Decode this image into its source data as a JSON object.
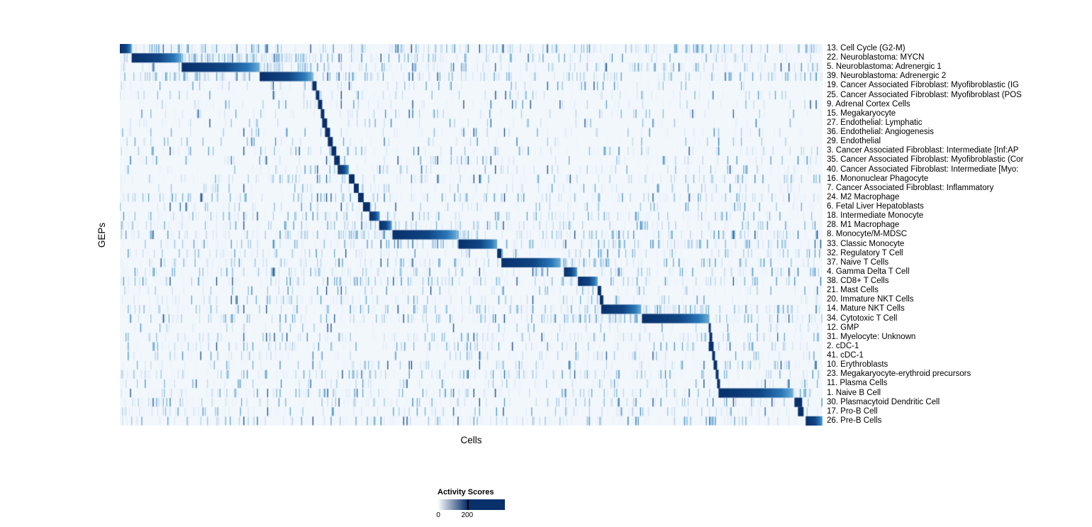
{
  "chart_data": {
    "type": "heatmap",
    "title": "",
    "xlabel": "Cells",
    "ylabel": "GEPs",
    "plot_bg": "#f2f7fc",
    "colorbar": {
      "title": "Activity Scores",
      "ticks": [
        "0",
        "200"
      ],
      "tick_values": [
        0,
        200
      ],
      "color_low": "#ffffff",
      "color_high": "#08306b",
      "tick_position_frac": 0.44
    },
    "rows": [
      {
        "label": "13. Cell Cycle (G2-M)",
        "block": [
          0.0,
          0.017
        ],
        "noise": 0.55
      },
      {
        "label": "22. Neuroblastoma: MYCN",
        "block": [
          0.017,
          0.088
        ],
        "noise": 0.3,
        "tail": [
          0.088,
          0.275,
          0.45
        ]
      },
      {
        "label": "5. Neuroblastoma: Adrenergic 1",
        "block": [
          0.088,
          0.199
        ],
        "noise": 0.3,
        "tail": [
          0.199,
          0.275,
          0.4
        ]
      },
      {
        "label": "39. Neuroblastoma: Adrenergic 2",
        "block": [
          0.199,
          0.274
        ],
        "noise": 0.35,
        "tail": [
          0.017,
          0.199,
          0.3
        ]
      },
      {
        "label": "19. Cancer Associated Fibroblast: Myofibroblastic (IG",
        "block": [
          0.274,
          0.28
        ],
        "noise": 0.15
      },
      {
        "label": "25. Cancer Associated Fibroblast: Myofibroblast (POS",
        "block": [
          0.279,
          0.284
        ],
        "noise": 0.15
      },
      {
        "label": "9. Adrenal Cortex Cells",
        "block": [
          0.282,
          0.288
        ],
        "noise": 0.12
      },
      {
        "label": "15. Megakaryocyte",
        "block": [
          0.286,
          0.291
        ],
        "noise": 0.15
      },
      {
        "label": "27. Endothelial: Lymphatic",
        "block": [
          0.288,
          0.295
        ],
        "noise": 0.12
      },
      {
        "label": "36. Endothelial: Angiogenesis",
        "block": [
          0.292,
          0.299
        ],
        "noise": 0.12
      },
      {
        "label": "29. Endothelial",
        "block": [
          0.296,
          0.303
        ],
        "noise": 0.12
      },
      {
        "label": "3. Cancer Associated Fibroblast: Intermediate [Inf:AP",
        "block": [
          0.301,
          0.308
        ],
        "noise": 0.18
      },
      {
        "label": "35. Cancer Associated Fibroblast: Myofibroblastic (Cor",
        "block": [
          0.305,
          0.313
        ],
        "noise": 0.18
      },
      {
        "label": "40. Cancer Associated Fibroblast: Intermediate [Myo:",
        "block": [
          0.31,
          0.326
        ],
        "noise": 0.18
      },
      {
        "label": "16. Mononuclear Phagocyte",
        "block": [
          0.326,
          0.334
        ],
        "noise": 0.25
      },
      {
        "label": "7. Cancer Associated Fibroblast: Inflammatory",
        "block": [
          0.333,
          0.34
        ],
        "noise": 0.2
      },
      {
        "label": "24. M2 Macrophage",
        "block": [
          0.339,
          0.347
        ],
        "noise": 0.3
      },
      {
        "label": "6. Fetal Liver Hepatoblasts",
        "block": [
          0.346,
          0.356
        ],
        "noise": 0.2
      },
      {
        "label": "18. Intermediate Monocyte",
        "block": [
          0.355,
          0.37
        ],
        "noise": 0.3
      },
      {
        "label": "28. M1 Macrophage",
        "block": [
          0.369,
          0.387
        ],
        "noise": 0.3
      },
      {
        "label": "8. Monocyte/M-MDSC",
        "block": [
          0.388,
          0.48
        ],
        "noise": 0.35,
        "tail": [
          0.326,
          0.54,
          0.35
        ]
      },
      {
        "label": "33. Classic Monocyte",
        "block": [
          0.482,
          0.537
        ],
        "noise": 0.3
      },
      {
        "label": "32. Regulatory T Cell",
        "block": [
          0.537,
          0.543
        ],
        "noise": 0.25
      },
      {
        "label": "37. Naive T Cells",
        "block": [
          0.543,
          0.627
        ],
        "noise": 0.35,
        "tail": [
          0.627,
          0.7,
          0.4
        ]
      },
      {
        "label": "4. Gamma Delta T Cell",
        "block": [
          0.632,
          0.651
        ],
        "noise": 0.3
      },
      {
        "label": "38. CD8+ T Cells",
        "block": [
          0.652,
          0.68
        ],
        "noise": 0.35,
        "tail": [
          0.63,
          0.652,
          0.3
        ]
      },
      {
        "label": "21. Mast Cells",
        "block": [
          0.68,
          0.685
        ],
        "noise": 0.15
      },
      {
        "label": "20. Immature NKT Cells",
        "block": [
          0.683,
          0.688
        ],
        "noise": 0.25
      },
      {
        "label": "14. Mature NKT Cells",
        "block": [
          0.685,
          0.742
        ],
        "noise": 0.35,
        "tail": [
          0.63,
          0.84,
          0.3
        ]
      },
      {
        "label": "34. Cytotoxic T Cell",
        "block": [
          0.743,
          0.839
        ],
        "noise": 0.35,
        "tail": [
          0.63,
          0.743,
          0.3
        ]
      },
      {
        "label": "12. GMP",
        "block": [
          0.838,
          0.841
        ],
        "noise": 0.15
      },
      {
        "label": "31. Myelocyte: Unknown",
        "block": [
          0.839,
          0.843
        ],
        "noise": 0.25
      },
      {
        "label": "2. cDC-1",
        "block": [
          0.838,
          0.845
        ],
        "noise": 0.25
      },
      {
        "label": "41. cDC-1",
        "block": [
          0.843,
          0.847
        ],
        "noise": 0.2
      },
      {
        "label": "10. Erythroblasts",
        "block": [
          0.845,
          0.85
        ],
        "noise": 0.25
      },
      {
        "label": "23. Megakaryocyte-erythroid precursors",
        "block": [
          0.848,
          0.852
        ],
        "noise": 0.3
      },
      {
        "label": "11. Plasma Cells",
        "block": [
          0.85,
          0.854
        ],
        "noise": 0.2
      },
      {
        "label": "1. Naive B Cell",
        "block": [
          0.852,
          0.958
        ],
        "noise": 0.3,
        "tail": [
          0.958,
          0.985,
          0.3
        ]
      },
      {
        "label": "30. Plasmacytoid Dendritic Cell",
        "block": [
          0.96,
          0.971
        ],
        "noise": 0.25
      },
      {
        "label": "17. Pro-B Cell",
        "block": [
          0.965,
          0.973
        ],
        "noise": 0.25
      },
      {
        "label": "26. Pre-B Cells",
        "block": [
          0.976,
          1.0
        ],
        "noise": 0.3
      }
    ]
  }
}
